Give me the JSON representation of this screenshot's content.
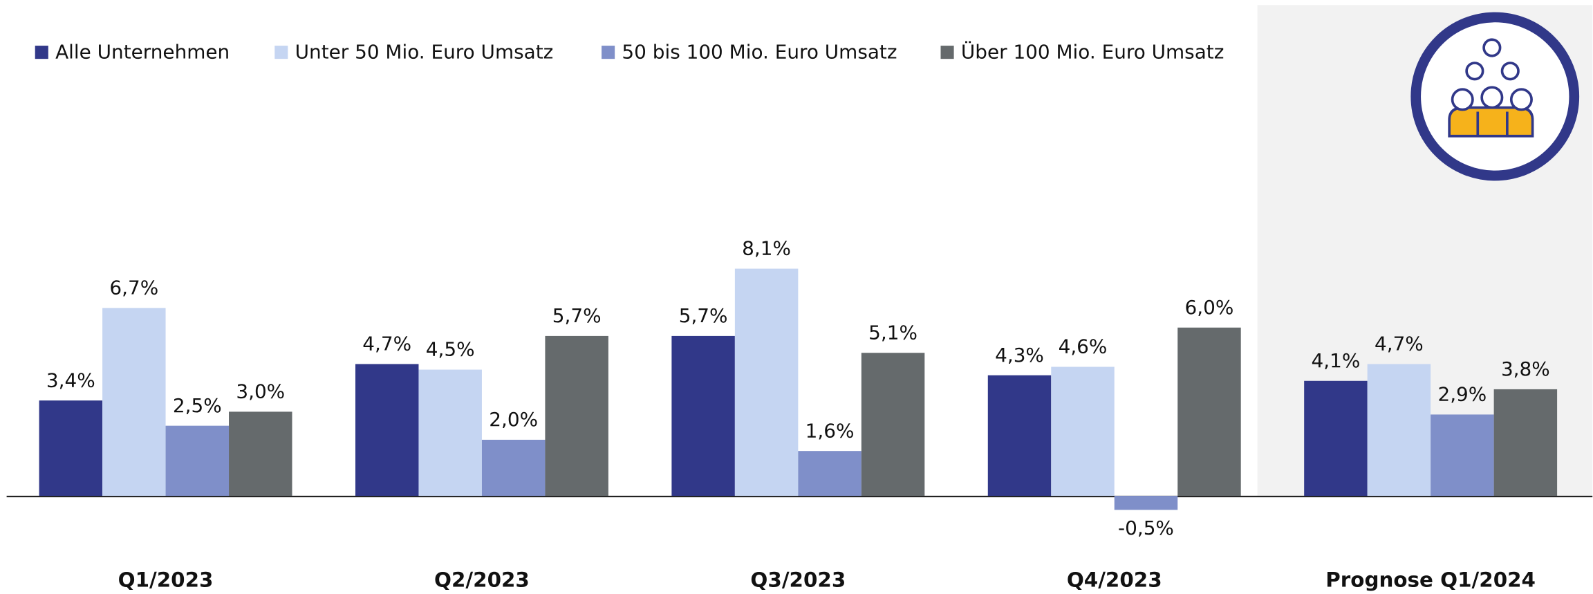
{
  "chart_data": {
    "type": "bar",
    "categories": [
      "Q1/2023",
      "Q2/2023",
      "Q3/2023",
      "Q4/2023",
      "Prognose Q1/2024"
    ],
    "series": [
      {
        "name": "Alle Unternehmen",
        "color": "#313889",
        "values": [
          3.4,
          4.7,
          5.7,
          4.3,
          4.1
        ],
        "value_labels": [
          "3,4%",
          "4,7%",
          "5,7%",
          "4,3%",
          "4,1%"
        ]
      },
      {
        "name": "Unter 50 Mio. Euro Umsatz",
        "color": "#c5d5f2",
        "values": [
          6.7,
          4.5,
          8.1,
          4.6,
          4.7
        ],
        "value_labels": [
          "6,7%",
          "4,5%",
          "8,1%",
          "4,6%",
          "4,7%"
        ]
      },
      {
        "name": "50 bis 100 Mio. Euro Umsatz",
        "color": "#7f8fc9",
        "values": [
          2.5,
          2.0,
          1.6,
          -0.5,
          2.9
        ],
        "value_labels": [
          "2,5%",
          "2,0%",
          "1,6%",
          "-0,5%",
          "2,9%"
        ]
      },
      {
        "name": "Über 100 Mio. Euro Umsatz",
        "color": "#656a6c",
        "values": [
          3.0,
          5.7,
          5.1,
          6.0,
          3.8
        ],
        "value_labels": [
          "3,0%",
          "5,7%",
          "5,1%",
          "6,0%",
          "3,8%"
        ]
      }
    ],
    "ylim": [
      -3.5,
      17.5
    ],
    "legend": "top-left"
  }
}
